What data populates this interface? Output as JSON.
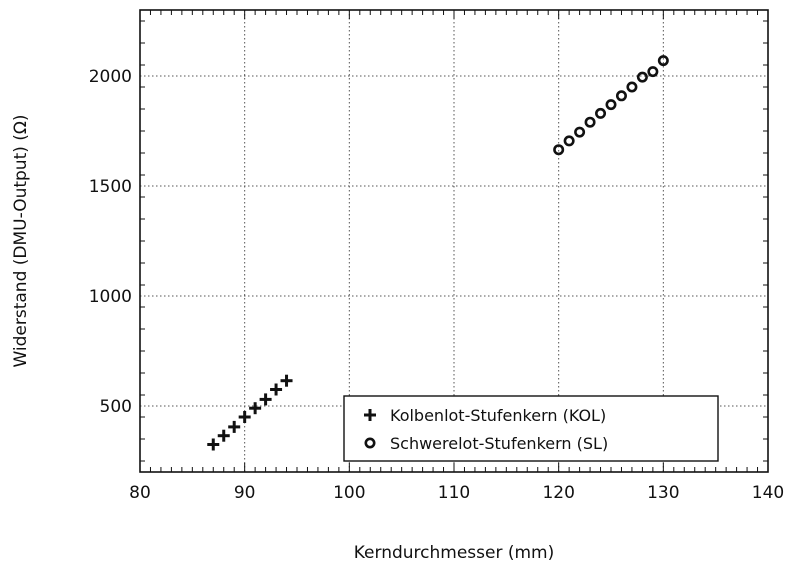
{
  "chart_data": {
    "type": "scatter",
    "xlabel": "Kerndurchmesser (mm)",
    "ylabel": "Widerstand (DMU-Output) (Ω)",
    "xlim": [
      80,
      140
    ],
    "ylim": [
      200,
      2300
    ],
    "xticks": [
      80,
      90,
      100,
      110,
      120,
      130,
      140
    ],
    "yticks": [
      500,
      1000,
      1500,
      2000
    ],
    "grid": true,
    "legend_position": "bottom-right",
    "series": [
      {
        "name": "Kolbenlot-Stufenkern (KOL)",
        "marker": "plus",
        "x": [
          87,
          88,
          89,
          90,
          91,
          92,
          93,
          94
        ],
        "y": [
          325,
          365,
          405,
          450,
          490,
          530,
          575,
          615
        ]
      },
      {
        "name": "Schwerelot-Stufenkern (SL)",
        "marker": "circle",
        "x": [
          120,
          121,
          122,
          123,
          124,
          125,
          126,
          127,
          128,
          129,
          130
        ],
        "y": [
          1665,
          1705,
          1745,
          1790,
          1830,
          1870,
          1910,
          1950,
          1995,
          2020,
          2070
        ]
      }
    ]
  }
}
